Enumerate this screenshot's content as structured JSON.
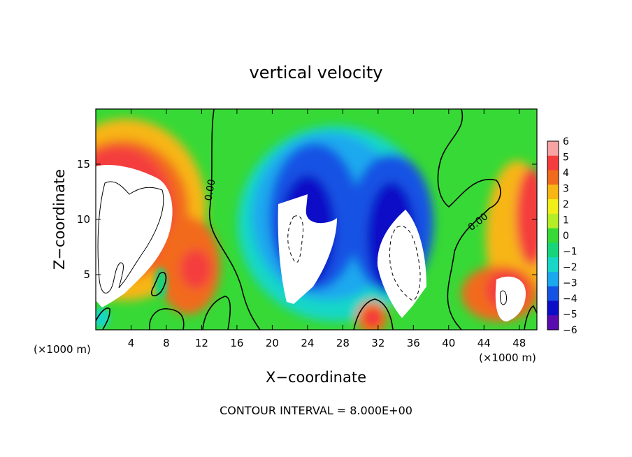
{
  "chart_data": {
    "type": "heatmap",
    "title": "vertical velocity",
    "xlabel": "X−coordinate",
    "ylabel": "Z−coordinate",
    "x_unit": "(×1000 m)",
    "x_unit_right": "(×1000 m)",
    "footer": "CONTOUR INTERVAL = 8.000E+00",
    "xlim": [
      0,
      50
    ],
    "ylim": [
      0,
      20
    ],
    "x_ticks": [
      4,
      8,
      12,
      16,
      20,
      24,
      28,
      32,
      36,
      40,
      44,
      48
    ],
    "y_ticks": [
      5,
      10,
      15
    ],
    "contour_labels": [
      "0.00",
      "0.00"
    ],
    "colorbar": {
      "min": -6,
      "max": 6,
      "ticks": [
        "6",
        "5",
        "4",
        "3",
        "2",
        "1",
        "0",
        "−1",
        "−2",
        "−3",
        "−4",
        "−5",
        "−6"
      ],
      "colors": [
        "#f7a3a3",
        "#f43c3c",
        "#f26a1e",
        "#f7b614",
        "#f1ef18",
        "#b4ee24",
        "#37d936",
        "#16d57a",
        "#18d7c6",
        "#1aa9ee",
        "#1553e4",
        "#0c0cc8",
        "#5a0bb0"
      ]
    }
  }
}
